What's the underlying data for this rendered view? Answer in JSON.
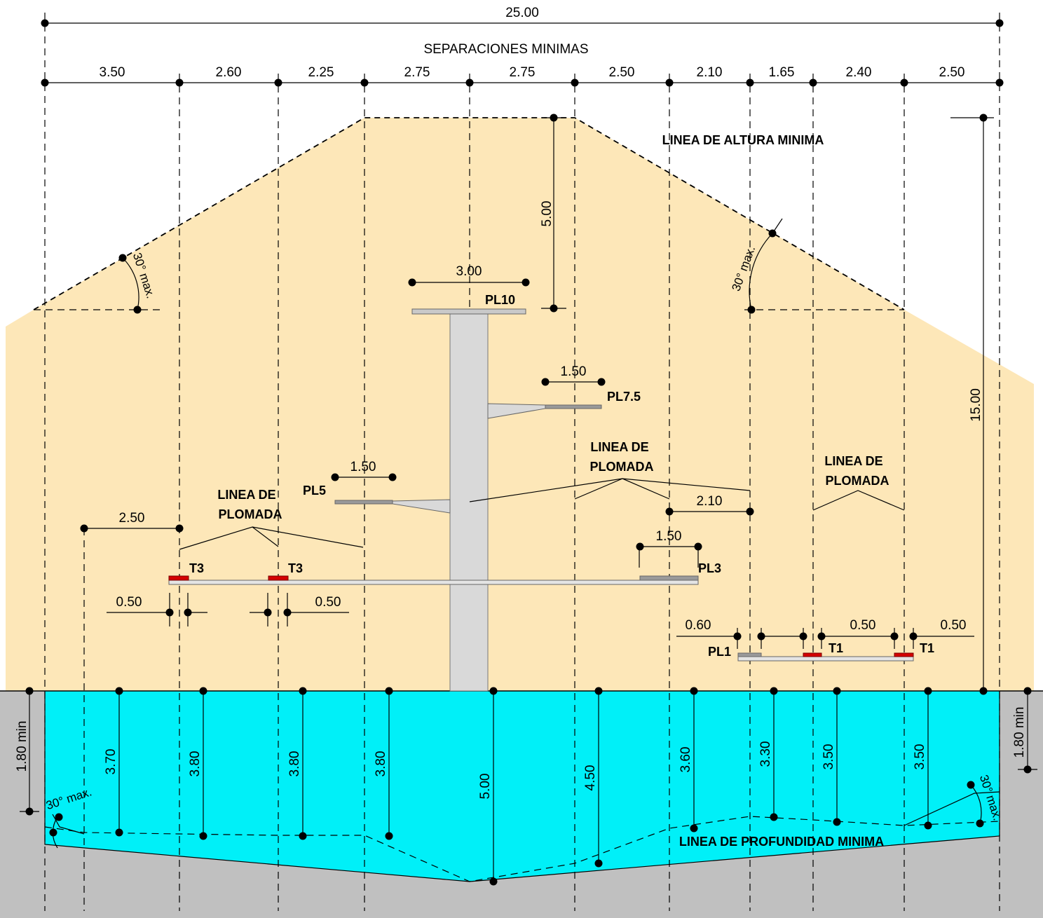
{
  "diagram": {
    "overall_width": "25.00",
    "separations_title": "SEPARACIONES MINIMAS",
    "separations": [
      "3.50",
      "2.60",
      "2.25",
      "2.75",
      "2.75",
      "2.50",
      "2.10",
      "1.65",
      "2.40",
      "2.50"
    ],
    "labels": {
      "min_height_line": "LINEA DE ALTURA MINIMA",
      "plumb_line_1": "LINEA DE",
      "plumb_line_2": "PLOMADA",
      "min_depth_line": "LINEA DE PROFUNDIDAD MINIMA",
      "angle": "30° max.",
      "min_depth_wall": "1.80 min"
    },
    "platforms": {
      "pl10": "PL10",
      "pl75": "PL7.5",
      "pl5": "PL5",
      "pl3": "PL3",
      "pl1": "PL1",
      "t3": "T3",
      "t1": "T1"
    },
    "dimensions": {
      "pl10_width": "3.00",
      "pl10_clear_height": "5.00",
      "pl75_width": "1.50",
      "pl5_width": "1.50",
      "pl3_width": "1.50",
      "pl3_plumb": "2.10",
      "t3_left_offset": "2.50",
      "t3_gap_left": "0.50",
      "t3_gap_right": "0.50",
      "pl1_gap": "0.60",
      "t1_gap_1": "0.50",
      "t1_gap_2": "0.50",
      "total_height": "15.00"
    },
    "depths": [
      "3.70",
      "3.80",
      "3.80",
      "3.80",
      "5.00",
      "4.50",
      "3.60",
      "3.30",
      "3.50",
      "3.50"
    ],
    "colors": {
      "air_zone": "#fde7b8",
      "water": "#00f0f8",
      "ground": "#c0c0c0",
      "platform": "#c9c9c9",
      "tower": "#d9d9d9",
      "board_marker": "#d40000"
    }
  }
}
